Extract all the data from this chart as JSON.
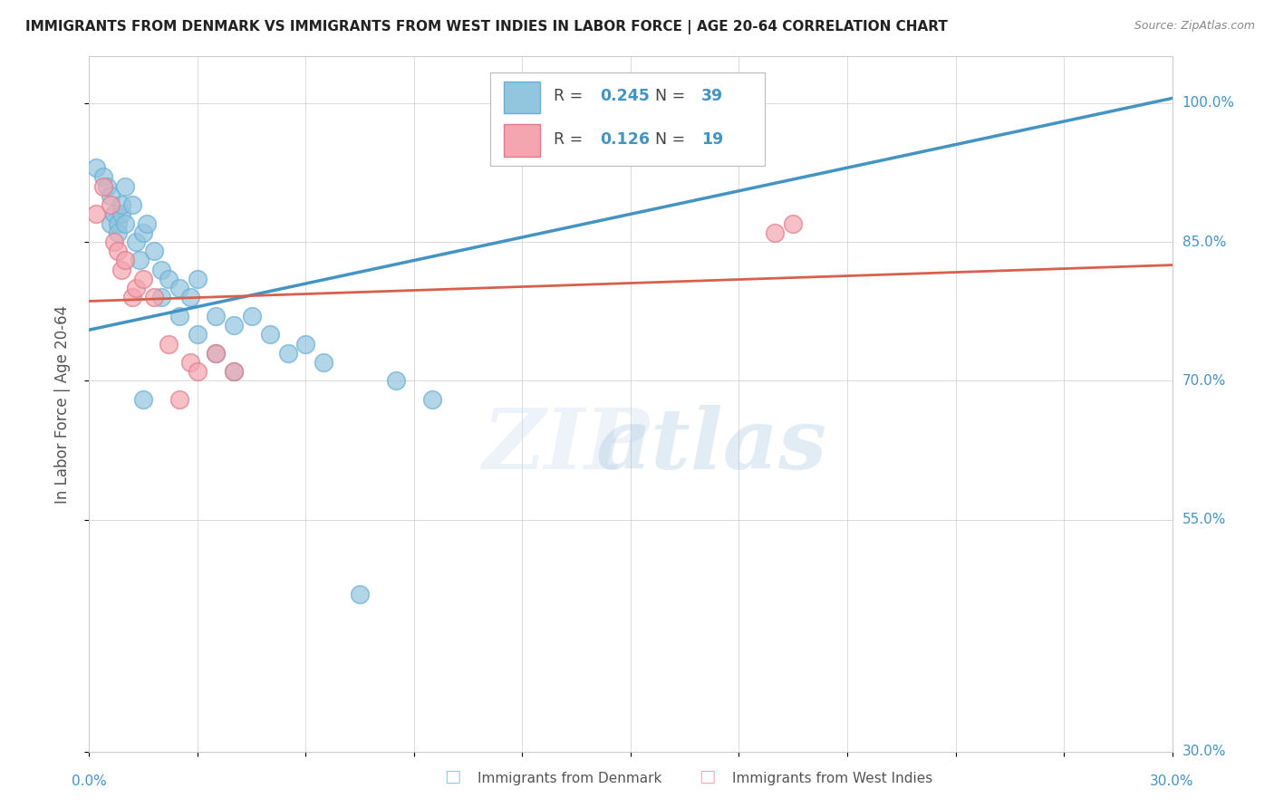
{
  "title": "IMMIGRANTS FROM DENMARK VS IMMIGRANTS FROM WEST INDIES IN LABOR FORCE | AGE 20-64 CORRELATION CHART",
  "source": "Source: ZipAtlas.com",
  "ylabel": "In Labor Force | Age 20-64",
  "watermark_zip": "ZIP",
  "watermark_atlas": "atlas",
  "legend_r1_val": "0.245",
  "legend_n1_val": "39",
  "legend_r2_val": "0.126",
  "legend_n2_val": "19",
  "xlim": [
    0.0,
    0.3
  ],
  "ylim": [
    0.3,
    1.05
  ],
  "ytick_vals": [
    0.3,
    0.55,
    0.7,
    0.85,
    1.0
  ],
  "ytick_labels": [
    "30.0%",
    "55.0%",
    "70.0%",
    "85.0%",
    "100.0%"
  ],
  "xtick_label_left": "0.0%",
  "xtick_label_right": "30.0%",
  "denmark_color": "#92c5de",
  "denmark_edge": "#6baed6",
  "westindies_color": "#f4a6b0",
  "westindies_edge": "#e07b8a",
  "trend_denmark_color": "#4393c3",
  "trend_westindies_color": "#d6604d",
  "trend_dashed_color": "#aaaaaa",
  "background_color": "#ffffff",
  "grid_color": "#d0d0d0",
  "label_color": "#4393c3",
  "title_color": "#222222",
  "source_color": "#888888",
  "ylabel_color": "#555555",
  "denmark_x": [
    0.002,
    0.004,
    0.005,
    0.006,
    0.006,
    0.007,
    0.008,
    0.008,
    0.009,
    0.009,
    0.01,
    0.01,
    0.012,
    0.013,
    0.014,
    0.015,
    0.016,
    0.018,
    0.02,
    0.022,
    0.025,
    0.028,
    0.03,
    0.035,
    0.04,
    0.045,
    0.05,
    0.055,
    0.06,
    0.065,
    0.075,
    0.085,
    0.095,
    0.015,
    0.02,
    0.025,
    0.03,
    0.035,
    0.04
  ],
  "denmark_y": [
    0.93,
    0.92,
    0.91,
    0.9,
    0.87,
    0.88,
    0.87,
    0.86,
    0.88,
    0.89,
    0.91,
    0.87,
    0.89,
    0.85,
    0.83,
    0.86,
    0.87,
    0.84,
    0.82,
    0.81,
    0.8,
    0.79,
    0.81,
    0.77,
    0.76,
    0.77,
    0.75,
    0.73,
    0.74,
    0.72,
    0.47,
    0.7,
    0.68,
    0.68,
    0.79,
    0.77,
    0.75,
    0.73,
    0.71
  ],
  "westindies_x": [
    0.002,
    0.004,
    0.006,
    0.007,
    0.008,
    0.009,
    0.01,
    0.012,
    0.013,
    0.015,
    0.018,
    0.022,
    0.028,
    0.035,
    0.04,
    0.19,
    0.195,
    0.025,
    0.03
  ],
  "westindies_y": [
    0.88,
    0.91,
    0.89,
    0.85,
    0.84,
    0.82,
    0.83,
    0.79,
    0.8,
    0.81,
    0.79,
    0.74,
    0.72,
    0.73,
    0.71,
    0.86,
    0.87,
    0.68,
    0.71
  ]
}
